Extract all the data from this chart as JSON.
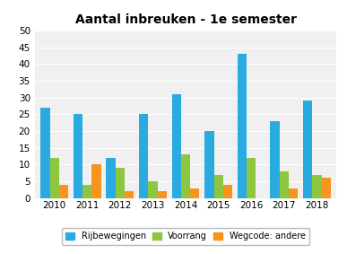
{
  "title": "Aantal inbreuken - 1e semester",
  "years": [
    2010,
    2011,
    2012,
    2013,
    2014,
    2015,
    2016,
    2017,
    2018
  ],
  "rijbewegingen": [
    27,
    25,
    12,
    25,
    31,
    20,
    43,
    23,
    29
  ],
  "voorrang": [
    12,
    4,
    9,
    5,
    13,
    7,
    12,
    8,
    7
  ],
  "wegcode_andere": [
    4,
    10,
    2,
    2,
    3,
    4,
    0,
    3,
    6
  ],
  "color_rij": "#29abe2",
  "color_voor": "#8dc63f",
  "color_weg": "#f7941d",
  "ylim": [
    0,
    50
  ],
  "yticks": [
    0,
    5,
    10,
    15,
    20,
    25,
    30,
    35,
    40,
    45,
    50
  ],
  "legend_labels": [
    "Rijbewegingen",
    "Voorrang",
    "Wegcode: andere"
  ],
  "bar_width": 0.28,
  "background_color": "#ffffff",
  "plot_bg_color": "#f0f0f0",
  "grid_color": "#ffffff",
  "title_fontsize": 10,
  "tick_fontsize": 7.5
}
